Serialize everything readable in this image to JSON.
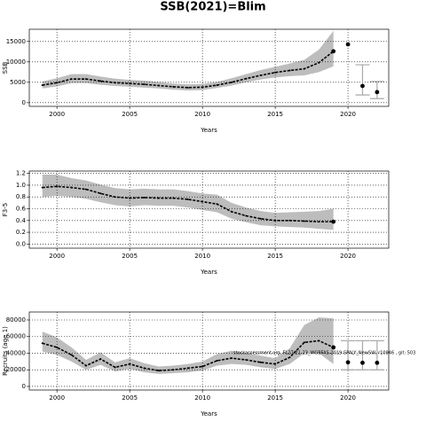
{
  "chart_data": [
    {
      "type": "line",
      "title": "SSB(2021)=Blim",
      "xlabel": "Years",
      "ylabel": "SSB",
      "x": [
        1999,
        2000,
        2001,
        2002,
        2003,
        2004,
        2005,
        2006,
        2007,
        2008,
        2009,
        2010,
        2011,
        2012,
        2013,
        2014,
        2015,
        2016,
        2017,
        2018,
        2019
      ],
      "values": [
        4300,
        4900,
        5800,
        5800,
        5300,
        4900,
        4700,
        4500,
        4200,
        3900,
        3700,
        3800,
        4300,
        5000,
        5900,
        6700,
        7400,
        7900,
        8300,
        9800,
        12600
      ],
      "lower": [
        3500,
        4000,
        4800,
        4800,
        4400,
        4100,
        3900,
        3700,
        3500,
        3200,
        3000,
        3100,
        3600,
        4200,
        5000,
        5700,
        6200,
        6500,
        6700,
        7500,
        8900
      ],
      "upper": [
        5200,
        6000,
        7000,
        7000,
        6400,
        5900,
        5600,
        5400,
        5100,
        4700,
        4500,
        4600,
        5100,
        6000,
        7000,
        8000,
        8800,
        9600,
        10500,
        13000,
        17600
      ],
      "forecast": {
        "x": [
          2020,
          2021,
          2022
        ],
        "values": [
          14300,
          4100,
          2600
        ],
        "lower": [
          null,
          1900,
          1000
        ],
        "upper": [
          null,
          9300,
          5200
        ]
      },
      "color": "#000000",
      "band_color": "#bdbdbd",
      "forecast_bar_color": "#a8a8a8",
      "xlim": [
        1998.1,
        2022.8
      ],
      "ylim": [
        -900,
        18000
      ],
      "xticks": [
        2000,
        2005,
        2010,
        2015,
        2020
      ],
      "yticks": [
        0,
        5000,
        10000,
        15000
      ],
      "grid": true
    },
    {
      "type": "line",
      "xlabel": "Years",
      "ylabel": "F3-5",
      "x": [
        1999,
        2000,
        2001,
        2002,
        2003,
        2004,
        2005,
        2006,
        2007,
        2008,
        2009,
        2010,
        2011,
        2012,
        2013,
        2014,
        2015,
        2016,
        2017,
        2018,
        2019
      ],
      "values": [
        0.96,
        0.98,
        0.96,
        0.93,
        0.86,
        0.8,
        0.78,
        0.79,
        0.78,
        0.78,
        0.76,
        0.72,
        0.68,
        0.55,
        0.48,
        0.43,
        0.4,
        0.4,
        0.39,
        0.38,
        0.38
      ],
      "lower": [
        0.8,
        0.82,
        0.8,
        0.77,
        0.71,
        0.66,
        0.64,
        0.66,
        0.65,
        0.65,
        0.62,
        0.58,
        0.54,
        0.43,
        0.37,
        0.32,
        0.3,
        0.29,
        0.28,
        0.26,
        0.24
      ],
      "upper": [
        1.18,
        1.18,
        1.12,
        1.08,
        1.01,
        0.95,
        0.93,
        0.94,
        0.93,
        0.93,
        0.9,
        0.86,
        0.84,
        0.7,
        0.62,
        0.56,
        0.53,
        0.54,
        0.55,
        0.56,
        0.6
      ],
      "color": "#000000",
      "band_color": "#bdbdbd",
      "xlim": [
        1998.1,
        2022.8
      ],
      "ylim": [
        -0.07,
        1.24
      ],
      "xticks": [
        2000,
        2005,
        2010,
        2015,
        2020
      ],
      "yticks": [
        {
          "value": 0,
          "label": "0.0"
        },
        0.2,
        0.4,
        0.6,
        0.8,
        {
          "value": 1,
          "label": "1.0"
        },
        1.2
      ],
      "grid": true
    },
    {
      "type": "line",
      "xlabel": "Years",
      "ylabel": "Recruits (age 1)",
      "annotation": "stockassessment.org, FL27.21-23_WGBFAS-2019-SPALY_NewSW, r10946 , git: 503",
      "x": [
        1999,
        2000,
        2001,
        2002,
        2003,
        2004,
        2005,
        2006,
        2007,
        2008,
        2009,
        2010,
        2011,
        2012,
        2013,
        2014,
        2015,
        2016,
        2017,
        2018,
        2019
      ],
      "values": [
        52000,
        47000,
        38000,
        25000,
        33000,
        23000,
        27000,
        22000,
        19000,
        20000,
        22000,
        24000,
        31000,
        34000,
        32000,
        29000,
        27000,
        35000,
        53000,
        55000,
        47000
      ],
      "lower": [
        42000,
        38000,
        30000,
        20000,
        26000,
        18000,
        21000,
        17000,
        15000,
        16000,
        17000,
        19000,
        25000,
        27000,
        26000,
        23000,
        21000,
        27000,
        40000,
        40000,
        27000
      ],
      "upper": [
        66000,
        59000,
        47000,
        32000,
        41000,
        29000,
        34000,
        28000,
        24000,
        25000,
        27000,
        30000,
        39000,
        43000,
        40000,
        37000,
        34000,
        46000,
        74000,
        83000,
        82000
      ],
      "forecast": {
        "x": [
          2020,
          2021,
          2022
        ],
        "values": [
          29000,
          28500,
          28500
        ],
        "lower": [
          20000,
          20000,
          20000
        ],
        "upper": [
          55000,
          55000,
          55000
        ]
      },
      "color": "#000000",
      "band_color": "#bdbdbd",
      "forecast_bar_color": "#a8a8a8",
      "xlim": [
        1998.1,
        2022.8
      ],
      "ylim": [
        -4300,
        89600
      ],
      "xticks": [
        2000,
        2005,
        2010,
        2015,
        2020
      ],
      "yticks": [
        0,
        20000,
        40000,
        60000,
        80000
      ],
      "grid": true
    }
  ]
}
